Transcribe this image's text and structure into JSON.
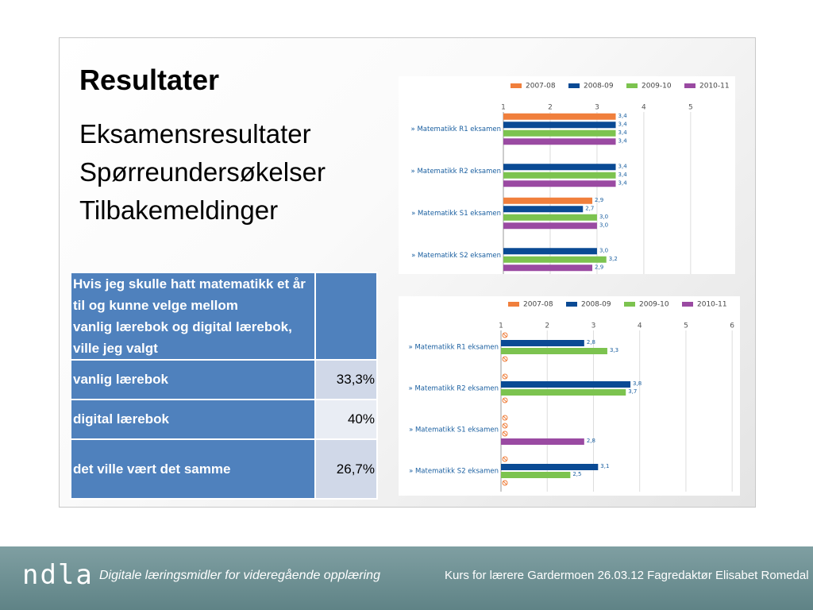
{
  "slide": {
    "title": "Resultater",
    "items": [
      "Eksamensresultater",
      "Spørreundersøkelser",
      "Tilbakemeldinger"
    ]
  },
  "table": {
    "header": [
      "Hvis jeg skulle hatt matematikk et år",
      "til og kunne velge mellom",
      "vanlig lærebok og digital lærebok,",
      "ville jeg valgt"
    ],
    "rows": [
      [
        "vanlig lærebok",
        "33,3%"
      ],
      [
        "digital lærebok",
        "40%"
      ],
      [
        "det ville vært det samme",
        "26,7%"
      ]
    ]
  },
  "chart_data": [
    {
      "type": "bar",
      "orientation": "horizontal",
      "categories": [
        "» Matematikk R1 eksamen",
        "» Matematikk R2 eksamen",
        "» Matematikk S1 eksamen",
        "» Matematikk S2 eksamen"
      ],
      "series": [
        {
          "name": "2007-08",
          "color": "#f07f3c",
          "values": [
            3.4,
            null,
            2.9,
            null
          ],
          "value_labels": [
            "3,4",
            null,
            "2,9",
            null
          ]
        },
        {
          "name": "2008-09",
          "color": "#0a4a94",
          "values": [
            3.4,
            3.4,
            2.7,
            3.0
          ],
          "value_labels": [
            "3,4",
            "3,4",
            "2,7",
            "3,0"
          ]
        },
        {
          "name": "2009-10",
          "color": "#7cc34f",
          "values": [
            3.4,
            3.4,
            3.0,
            3.2
          ],
          "value_labels": [
            "3,4",
            "3,4",
            "3,0",
            "3,2"
          ]
        },
        {
          "name": "2010-11",
          "color": "#9a4aa2",
          "values": [
            3.4,
            3.4,
            3.0,
            2.9
          ],
          "value_labels": [
            "3,4",
            "3,4",
            "3,0",
            "2,9"
          ]
        }
      ],
      "xlim": [
        1,
        5.85
      ],
      "xticks": [
        1,
        2,
        3,
        4,
        5
      ],
      "grid": true,
      "legend": "top-right",
      "missing_marker": false
    },
    {
      "type": "bar",
      "orientation": "horizontal",
      "categories": [
        "» Matematikk R1 eksamen",
        "» Matematikk R2 eksamen",
        "» Matematikk S1 eksamen",
        "» Matematikk S2 eksamen"
      ],
      "series": [
        {
          "name": "2007-08",
          "color": "#f07f3c",
          "values": [
            null,
            null,
            null,
            null
          ],
          "value_labels": [
            null,
            null,
            null,
            null
          ]
        },
        {
          "name": "2008-09",
          "color": "#0a4a94",
          "values": [
            2.8,
            3.8,
            null,
            3.1
          ],
          "value_labels": [
            "2,8",
            "3,8",
            null,
            "3,1"
          ]
        },
        {
          "name": "2009-10",
          "color": "#7cc34f",
          "values": [
            3.3,
            3.7,
            null,
            2.5
          ],
          "value_labels": [
            "3,3",
            "3,7",
            null,
            "2,5"
          ]
        },
        {
          "name": "2010-11",
          "color": "#9a4aa2",
          "values": [
            null,
            null,
            2.8,
            null
          ],
          "value_labels": [
            null,
            null,
            "2,8",
            null
          ]
        }
      ],
      "xlim": [
        1,
        6.1
      ],
      "xticks": [
        1,
        2,
        3,
        4,
        5,
        6
      ],
      "grid": true,
      "legend": "top-right",
      "missing_marker": true
    }
  ],
  "footer": {
    "logo": "ndla",
    "tagline": "Digitale læringsmidler for videregående opplæring",
    "credit": "Kurs for lærere Gardermoen 26.03.12 Fagredaktør Elisabet Romedal"
  }
}
